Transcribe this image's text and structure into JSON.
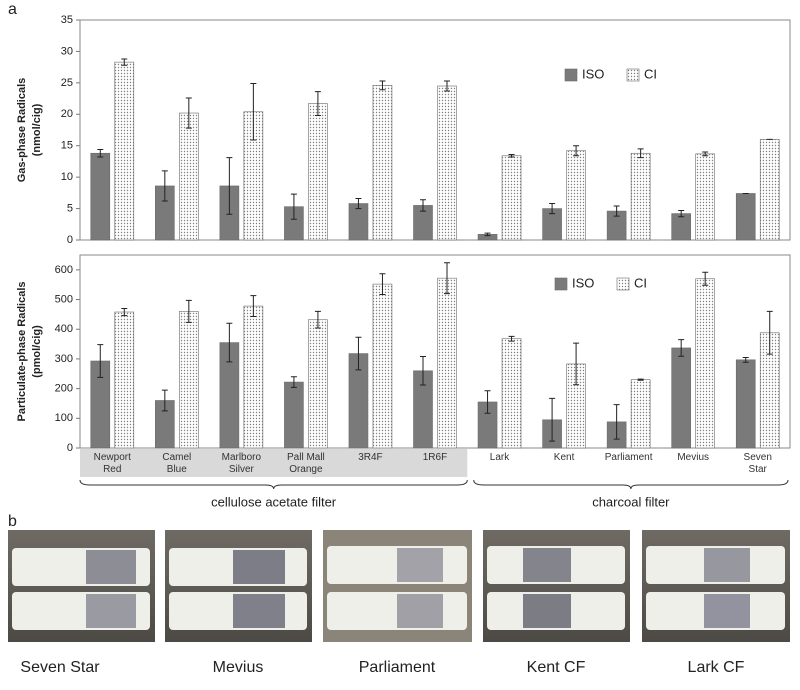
{
  "panel_labels": [
    "a",
    "b"
  ],
  "groups": [
    "cellulose acetate filter",
    "charcoal filter"
  ],
  "photos": [
    "Seven Star",
    "Mevius",
    "Parliament",
    "Kent CF",
    "Lark CF"
  ],
  "chart_data": [
    {
      "type": "bar",
      "ylabel": [
        "Gas-phase Radicals",
        "(nmol/cig)"
      ],
      "categories": [
        null,
        null,
        null,
        null,
        null,
        null,
        null,
        null,
        null,
        null,
        null
      ],
      "series": [
        {
          "name": "ISO",
          "color": "#7a7a7a",
          "pattern": "solid",
          "values": [
            13.8,
            8.6,
            8.6,
            5.3,
            5.8,
            5.5,
            0.9,
            5.0,
            4.6,
            4.2,
            7.4
          ],
          "errors": [
            0.6,
            2.4,
            4.5,
            2.0,
            0.8,
            0.9,
            0.2,
            0.8,
            0.8,
            0.5,
            0
          ]
        },
        {
          "name": "CI",
          "color": "#808080",
          "pattern": "dots",
          "values": [
            28.3,
            20.2,
            20.4,
            21.7,
            24.6,
            24.5,
            13.4,
            14.2,
            13.8,
            13.7,
            16.0
          ],
          "errors": [
            0.5,
            2.4,
            4.5,
            1.9,
            0.7,
            0.8,
            0.2,
            0.8,
            0.7,
            0.3,
            0
          ]
        }
      ],
      "ylim": [
        0,
        35
      ],
      "yticks": [
        0,
        5,
        10,
        15,
        20,
        25,
        30,
        35
      ],
      "legend": "upper-right"
    },
    {
      "type": "bar",
      "ylabel": [
        "Particulate-phase Radicals",
        "(pmol/cig)"
      ],
      "categories": [
        "Newport Red",
        "Camel Blue",
        "Marlboro Silver",
        "Pall Mall Orange",
        "3R4F",
        "1R6F",
        "Lark",
        "Kent",
        "Parliament",
        "Mevius",
        "Seven Star"
      ],
      "series": [
        {
          "name": "ISO",
          "color": "#7a7a7a",
          "pattern": "solid",
          "values": [
            293,
            160,
            355,
            222,
            318,
            260,
            155,
            95,
            88,
            337,
            297
          ],
          "errors": [
            55,
            35,
            65,
            18,
            55,
            48,
            38,
            72,
            58,
            28,
            8
          ]
        },
        {
          "name": "CI",
          "color": "#808080",
          "pattern": "dots",
          "values": [
            458,
            460,
            478,
            432,
            552,
            572,
            368,
            283,
            230,
            570,
            388
          ],
          "errors": [
            12,
            37,
            35,
            28,
            35,
            52,
            8,
            70,
            2,
            22,
            72
          ]
        }
      ],
      "ylim": [
        0,
        650
      ],
      "yticks": [
        0,
        100,
        200,
        300,
        400,
        500,
        600
      ],
      "legend": "upper-right"
    }
  ]
}
